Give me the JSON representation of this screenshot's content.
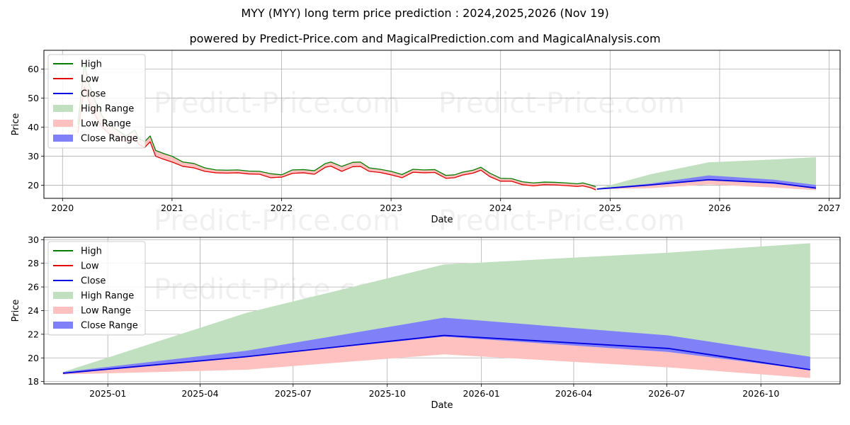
{
  "page": {
    "title": "MYY (MYY) long term price prediction : 2024,2025,2026 (Nov 19)",
    "subtitle": "powered by Predict-Price.com and MagicalPrediction.com and MagicalAnalysis.com",
    "watermark": "Predict-Price.com"
  },
  "colors": {
    "high": "#008000",
    "low": "#e00000",
    "close": "#0000e0",
    "high_range": "#c0e0c0",
    "low_range": "#ffc0c0",
    "close_range": "#8080f8",
    "grid": "#b0b0b0"
  },
  "chart_data": [
    {
      "type": "line",
      "title": "",
      "xlabel": "Date",
      "ylabel": "Price",
      "xlim": [
        2019.83,
        2027.1
      ],
      "ylim": [
        15.5,
        66.5
      ],
      "xticks": [
        2020,
        2021,
        2022,
        2023,
        2024,
        2025,
        2026,
        2027
      ],
      "xtick_labels": [
        "2020",
        "2021",
        "2022",
        "2023",
        "2024",
        "2025",
        "2026",
        "2027"
      ],
      "yticks": [
        20,
        30,
        40,
        50,
        60
      ],
      "ytick_labels": [
        "20",
        "30",
        "40",
        "50",
        "60"
      ],
      "grid": true,
      "legend_position": "top-left",
      "legend": [
        "High",
        "Low",
        "Close",
        "High Range",
        "Low Range",
        "Close Range"
      ],
      "history": {
        "x": [
          2020.14,
          2020.2,
          2020.24,
          2020.3,
          2020.36,
          2020.42,
          2020.5,
          2020.58,
          2020.66,
          2020.7,
          2020.75,
          2020.8,
          2020.85,
          2020.92,
          2021.0,
          2021.1,
          2021.2,
          2021.3,
          2021.4,
          2021.5,
          2021.6,
          2021.7,
          2021.8,
          2021.9,
          2022.0,
          2022.1,
          2022.2,
          2022.3,
          2022.4,
          2022.45,
          2022.55,
          2022.65,
          2022.72,
          2022.8,
          2022.9,
          2023.0,
          2023.1,
          2023.2,
          2023.3,
          2023.4,
          2023.5,
          2023.58,
          2023.65,
          2023.75,
          2023.82,
          2023.9,
          2024.0,
          2024.1,
          2024.2,
          2024.3,
          2024.4,
          2024.5,
          2024.6,
          2024.7,
          2024.75,
          2024.82,
          2024.87
        ],
        "high": [
          41,
          62,
          55,
          49,
          44,
          41,
          39,
          37,
          39,
          36,
          35,
          37,
          32,
          31,
          30,
          28,
          27.5,
          26,
          25.3,
          25.2,
          25.3,
          24.9,
          24.8,
          24,
          23.6,
          25.3,
          25.4,
          25,
          27.5,
          28,
          26.5,
          27.9,
          28,
          26,
          25.5,
          24.8,
          23.7,
          25.5,
          25.3,
          25.4,
          23.4,
          23.6,
          24.5,
          25.2,
          26.2,
          24.2,
          22.4,
          22.3,
          21.2,
          20.8,
          21.1,
          21,
          20.8,
          20.5,
          20.8,
          20.1,
          19.5
        ],
        "low": [
          38,
          54,
          49,
          44,
          40,
          38,
          36,
          35,
          36,
          34,
          33,
          35,
          30,
          29,
          28,
          26.5,
          26,
          24.8,
          24.3,
          24.2,
          24.3,
          23.9,
          23.8,
          22.6,
          22.8,
          24.1,
          24.3,
          23.8,
          26.2,
          26.6,
          24.8,
          26.4,
          26.5,
          24.8,
          24.4,
          23.6,
          22.6,
          24.5,
          24.3,
          24.4,
          22.4,
          22.6,
          23.5,
          24.2,
          25.2,
          23,
          21.4,
          21.4,
          20.2,
          19.8,
          20.2,
          20.1,
          19.9,
          19.6,
          19.8,
          19.2,
          18.4
        ],
        "close": [
          39.5,
          58,
          52,
          46,
          42,
          39.5,
          37.5,
          36,
          37.5,
          35,
          34,
          36,
          31,
          30,
          29,
          27.2,
          26.8,
          25.4,
          24.8,
          24.7,
          24.8,
          24.4,
          24.3,
          23.3,
          23.2,
          24.7,
          24.8,
          24.4,
          26.8,
          27.3,
          25.6,
          27.1,
          27.2,
          25.4,
          24.9,
          24.2,
          23.1,
          25,
          24.8,
          24.9,
          22.9,
          23.1,
          24,
          24.7,
          25.7,
          23.6,
          21.9,
          21.8,
          20.7,
          20.3,
          20.6,
          20.5,
          20.3,
          20,
          20.3,
          19.6,
          18.9
        ]
      },
      "forecast": {
        "x": [
          2024.88,
          2025.37,
          2025.9,
          2026.5,
          2026.88
        ],
        "high_upper": [
          18.8,
          23.8,
          27.9,
          28.9,
          29.7
        ],
        "high_lower": [
          18.7,
          19.8,
          21.8,
          20.7,
          19.8
        ],
        "low_upper": [
          18.7,
          20.3,
          21.9,
          20.5,
          19.0
        ],
        "low_lower": [
          18.6,
          19.0,
          20.3,
          19.2,
          18.3
        ],
        "close_upper": [
          18.8,
          20.6,
          23.4,
          21.9,
          20.1
        ],
        "close_lower": [
          18.7,
          20.1,
          21.8,
          20.5,
          19.0
        ],
        "close": [
          18.7,
          20.1,
          21.9,
          20.8,
          19.0
        ]
      }
    },
    {
      "type": "area",
      "title": "",
      "xlabel": "Date",
      "ylabel": "Price",
      "xlim": [
        2024.829,
        2026.96
      ],
      "ylim": [
        17.8,
        30.2
      ],
      "xticks": [
        2025.0,
        2025.247,
        2025.496,
        2025.748,
        2026.0,
        2026.247,
        2026.496,
        2026.748
      ],
      "xtick_labels": [
        "2025-01",
        "2025-04",
        "2025-07",
        "2025-10",
        "2026-01",
        "2026-04",
        "2026-07",
        "2026-10"
      ],
      "yticks": [
        18,
        20,
        22,
        24,
        26,
        28,
        30
      ],
      "ytick_labels": [
        "18",
        "20",
        "22",
        "24",
        "26",
        "28",
        "30"
      ],
      "grid": true,
      "legend_position": "top-left",
      "legend": [
        "High",
        "Low",
        "Close",
        "High Range",
        "Low Range",
        "Close Range"
      ],
      "forecast": {
        "x": [
          2024.88,
          2025.37,
          2025.9,
          2026.5,
          2026.88
        ],
        "high_upper": [
          18.8,
          23.8,
          27.9,
          28.9,
          29.7
        ],
        "high_lower": [
          18.7,
          19.8,
          21.8,
          20.7,
          19.8
        ],
        "low_upper": [
          18.7,
          20.3,
          21.9,
          20.5,
          19.0
        ],
        "low_lower": [
          18.6,
          19.0,
          20.3,
          19.2,
          18.3
        ],
        "close_upper": [
          18.8,
          20.6,
          23.4,
          21.9,
          20.1
        ],
        "close_lower": [
          18.7,
          20.1,
          21.8,
          20.5,
          19.0
        ],
        "close": [
          18.7,
          20.1,
          21.9,
          20.8,
          19.0
        ]
      }
    }
  ]
}
